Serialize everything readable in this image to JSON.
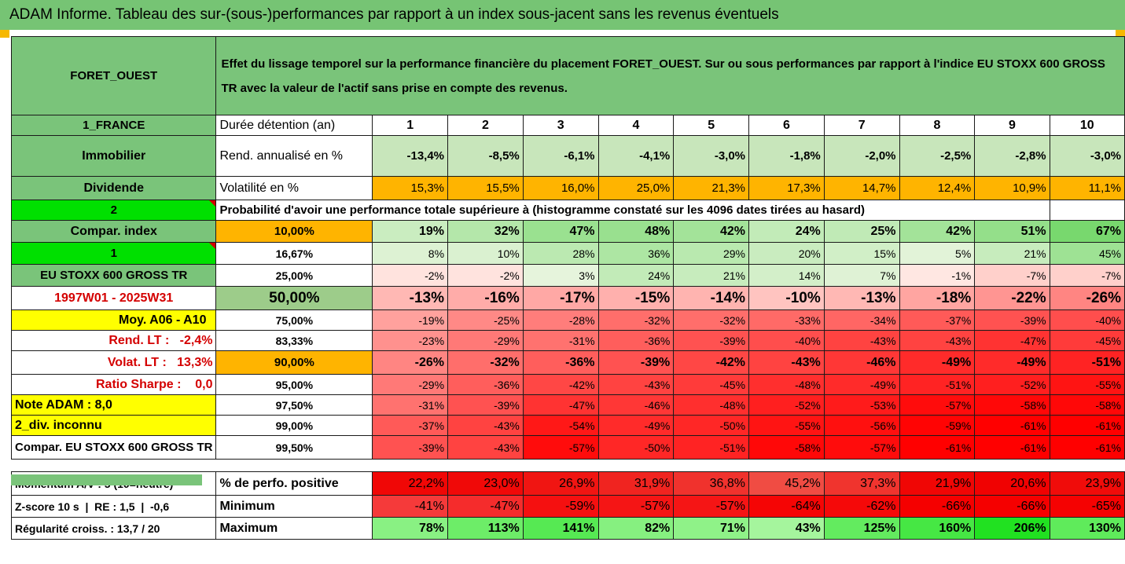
{
  "title": "ADAM Informe. Tableau des sur-(sous-)performances par rapport à un index sous-jacent sans les revenus éventuels",
  "colors": {
    "header_green": "#76c474",
    "accent_orange": "#f6b800",
    "bright_green": "#00e000",
    "yellow": "#ffff00",
    "red_text": "#d40000"
  },
  "header": {
    "fund": "FORET_OUEST",
    "description": "Effet du lissage temporel sur la performance financière du placement FORET_OUEST. Sur ou sous performances par rapport à l'indice EU STOXX 600 GROSS TR avec la valeur de l'actif sans prise en compte des revenus."
  },
  "years": [
    "1",
    "2",
    "3",
    "4",
    "5",
    "6",
    "7",
    "8",
    "9",
    "10"
  ],
  "left_labels": {
    "country": "1_FRANCE",
    "type": "Immobilier",
    "dividend": "Dividende",
    "two": "2",
    "compar_index": "Compar. index",
    "one": "1",
    "index_name": "EU STOXX 600 GROSS TR",
    "period": "1997W01 - 2025W31",
    "moy": "Moy. A06 - A10",
    "rend_lt": "Rend. LT :   -2,4%",
    "volat_lt": "Volat. LT :   13,3%",
    "sharpe": "Ratio Sharpe :    0,0",
    "note": "Note ADAM : 8,0",
    "div": "2_div. inconnu",
    "compar_full": "Compar. EU STOXX 600 GROSS TR",
    "momentum": "Momentum A/V : 5 (10=neutre)",
    "zscore": "Z-score 10 s  |  RE : 1,5  |  -0,6",
    "regularite": "Régularité croiss. : 13,7 / 20"
  },
  "row_labels": {
    "duree": "Durée détention (an)",
    "rend": "Rend. annualisé en %",
    "vol": "Volatilité en %",
    "proba": "Probabilité d'avoir une performance totale supérieure à (histogramme constaté sur les 4096 dates tirées au hasard)",
    "perfo_pos": "% de perfo. positive",
    "minimum": "Minimum",
    "maximum": "Maximum"
  },
  "rend": [
    "-13,4%",
    "-8,5%",
    "-6,1%",
    "-4,1%",
    "-3,0%",
    "-1,8%",
    "-2,0%",
    "-2,5%",
    "-2,8%",
    "-3,0%"
  ],
  "vol": [
    "15,3%",
    "15,5%",
    "16,0%",
    "25,0%",
    "21,3%",
    "17,3%",
    "14,7%",
    "12,4%",
    "10,9%",
    "11,1%"
  ],
  "quantiles": [
    {
      "q": "10,00%",
      "values": [
        "19%",
        "32%",
        "47%",
        "48%",
        "42%",
        "24%",
        "25%",
        "42%",
        "51%",
        "67%"
      ]
    },
    {
      "q": "16,67%",
      "values": [
        "8%",
        "10%",
        "28%",
        "36%",
        "29%",
        "20%",
        "15%",
        "5%",
        "21%",
        "45%"
      ]
    },
    {
      "q": "25,00%",
      "values": [
        "-2%",
        "-2%",
        "3%",
        "24%",
        "21%",
        "14%",
        "7%",
        "-1%",
        "-7%",
        "-7%"
      ]
    },
    {
      "q": "50,00%",
      "values": [
        "-13%",
        "-16%",
        "-17%",
        "-15%",
        "-14%",
        "-10%",
        "-13%",
        "-18%",
        "-22%",
        "-26%"
      ]
    },
    {
      "q": "75,00%",
      "values": [
        "-19%",
        "-25%",
        "-28%",
        "-32%",
        "-32%",
        "-33%",
        "-34%",
        "-37%",
        "-39%",
        "-40%"
      ]
    },
    {
      "q": "83,33%",
      "values": [
        "-23%",
        "-29%",
        "-31%",
        "-36%",
        "-39%",
        "-40%",
        "-43%",
        "-43%",
        "-47%",
        "-45%"
      ]
    },
    {
      "q": "90,00%",
      "values": [
        "-26%",
        "-32%",
        "-36%",
        "-39%",
        "-42%",
        "-43%",
        "-46%",
        "-49%",
        "-49%",
        "-51%"
      ]
    },
    {
      "q": "95,00%",
      "values": [
        "-29%",
        "-36%",
        "-42%",
        "-43%",
        "-45%",
        "-48%",
        "-49%",
        "-51%",
        "-52%",
        "-55%"
      ]
    },
    {
      "q": "97,50%",
      "values": [
        "-31%",
        "-39%",
        "-47%",
        "-46%",
        "-48%",
        "-52%",
        "-53%",
        "-57%",
        "-58%",
        "-58%"
      ]
    },
    {
      "q": "99,00%",
      "values": [
        "-37%",
        "-43%",
        "-54%",
        "-49%",
        "-50%",
        "-55%",
        "-56%",
        "-59%",
        "-61%",
        "-61%"
      ]
    },
    {
      "q": "99,50%",
      "values": [
        "-39%",
        "-43%",
        "-57%",
        "-50%",
        "-51%",
        "-58%",
        "-57%",
        "-61%",
        "-61%",
        "-61%"
      ]
    }
  ],
  "perfo_pos": [
    "22,2%",
    "23,0%",
    "26,9%",
    "31,9%",
    "36,8%",
    "45,2%",
    "37,3%",
    "21,9%",
    "20,6%",
    "23,9%"
  ],
  "minimum": [
    "-41%",
    "-47%",
    "-59%",
    "-57%",
    "-57%",
    "-64%",
    "-62%",
    "-66%",
    "-66%",
    "-65%"
  ],
  "maximum": [
    "78%",
    "113%",
    "141%",
    "82%",
    "71%",
    "43%",
    "125%",
    "160%",
    "206%",
    "130%"
  ]
}
